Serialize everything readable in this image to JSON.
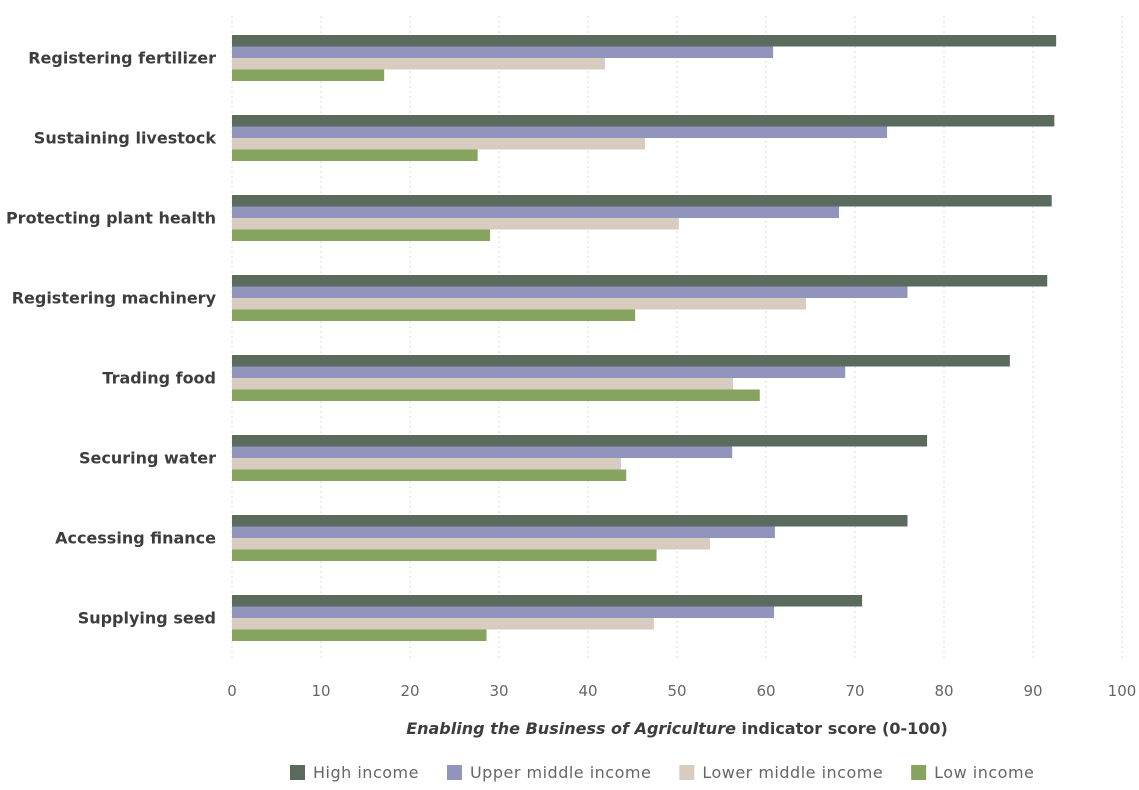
{
  "chart_data": {
    "type": "bar",
    "orientation": "horizontal",
    "categories": [
      "Registering fertilizer",
      "Sustaining livestock",
      "Protecting plant health",
      "Registering machinery",
      "Trading food",
      "Securing water",
      "Accessing finance",
      "Supplying seed"
    ],
    "series": [
      {
        "name": "High income",
        "color": "#5a6b5d",
        "values": [
          92.6,
          92.4,
          92.1,
          91.6,
          87.4,
          78.1,
          75.9,
          70.8
        ]
      },
      {
        "name": "Upper middle income",
        "color": "#9195bd",
        "values": [
          60.8,
          73.6,
          68.2,
          75.9,
          68.9,
          56.2,
          61.0,
          60.9
        ]
      },
      {
        "name": "Lower middle income",
        "color": "#d8cbbf",
        "values": [
          41.9,
          46.4,
          50.2,
          64.5,
          56.3,
          43.7,
          53.7,
          47.4
        ]
      },
      {
        "name": "Low income",
        "color": "#86a35f",
        "values": [
          17.1,
          27.6,
          29.0,
          45.3,
          59.3,
          44.3,
          47.7,
          28.6
        ]
      }
    ],
    "xlim": [
      0,
      100
    ],
    "xticks": [
      "0",
      "10",
      "20",
      "30",
      "40",
      "50",
      "60",
      "70",
      "80",
      "90",
      "100"
    ],
    "xlabel_italic": "Enabling the Business of Agriculture",
    "xlabel_rest": " indicator score (0-100)",
    "grid": "vertical dotted",
    "legend_position": "bottom"
  }
}
